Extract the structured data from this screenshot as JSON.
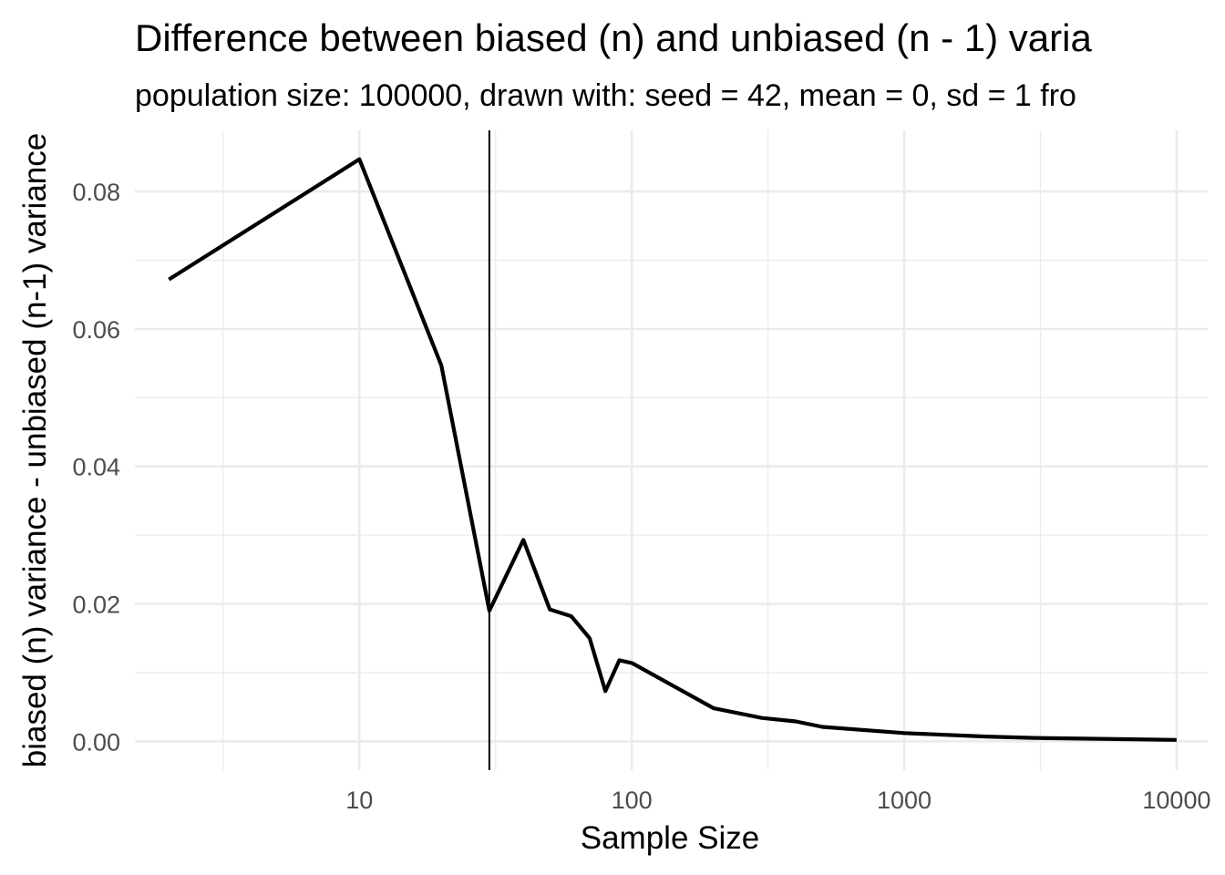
{
  "chart_data": {
    "type": "line",
    "title": "Difference between biased (n) and unbiased (n - 1) varia",
    "subtitle": "population size: 100000, drawn with: seed = 42, mean = 0, sd = 1 fro",
    "xlabel": "Sample Size",
    "ylabel": "biased (n) variance - unbiased (n-1) variance",
    "x_scale": "log10",
    "x_ticks": [
      10,
      100,
      1000,
      10000
    ],
    "x_tick_labels": [
      "10",
      "100",
      "1000",
      "10000"
    ],
    "x_minor": [
      3.1623,
      31.623,
      316.23,
      3162.3
    ],
    "xlim": [
      1.5,
      13000
    ],
    "y_ticks": [
      0,
      0.02,
      0.04,
      0.06,
      0.08
    ],
    "y_tick_labels": [
      "0.00",
      "0.02",
      "0.04",
      "0.06",
      "0.08"
    ],
    "y_minor": [
      0.01,
      0.03,
      0.05,
      0.07
    ],
    "ylim": [
      -0.0042,
      0.0889
    ],
    "vline_x": 30,
    "grid": true,
    "line_color": "#000000",
    "series": [
      {
        "x": [
          2,
          10,
          20,
          30,
          40,
          50,
          60,
          70,
          80,
          90,
          100,
          200,
          300,
          400,
          500,
          1000,
          2000,
          3000,
          10000
        ],
        "y": [
          0.0672,
          0.0847,
          0.0547,
          0.019,
          0.0293,
          0.0192,
          0.0182,
          0.015,
          0.0073,
          0.0118,
          0.0114,
          0.0048,
          0.0034,
          0.0029,
          0.0021,
          0.0012,
          0.0007,
          0.0005,
          0.0002
        ]
      }
    ]
  }
}
